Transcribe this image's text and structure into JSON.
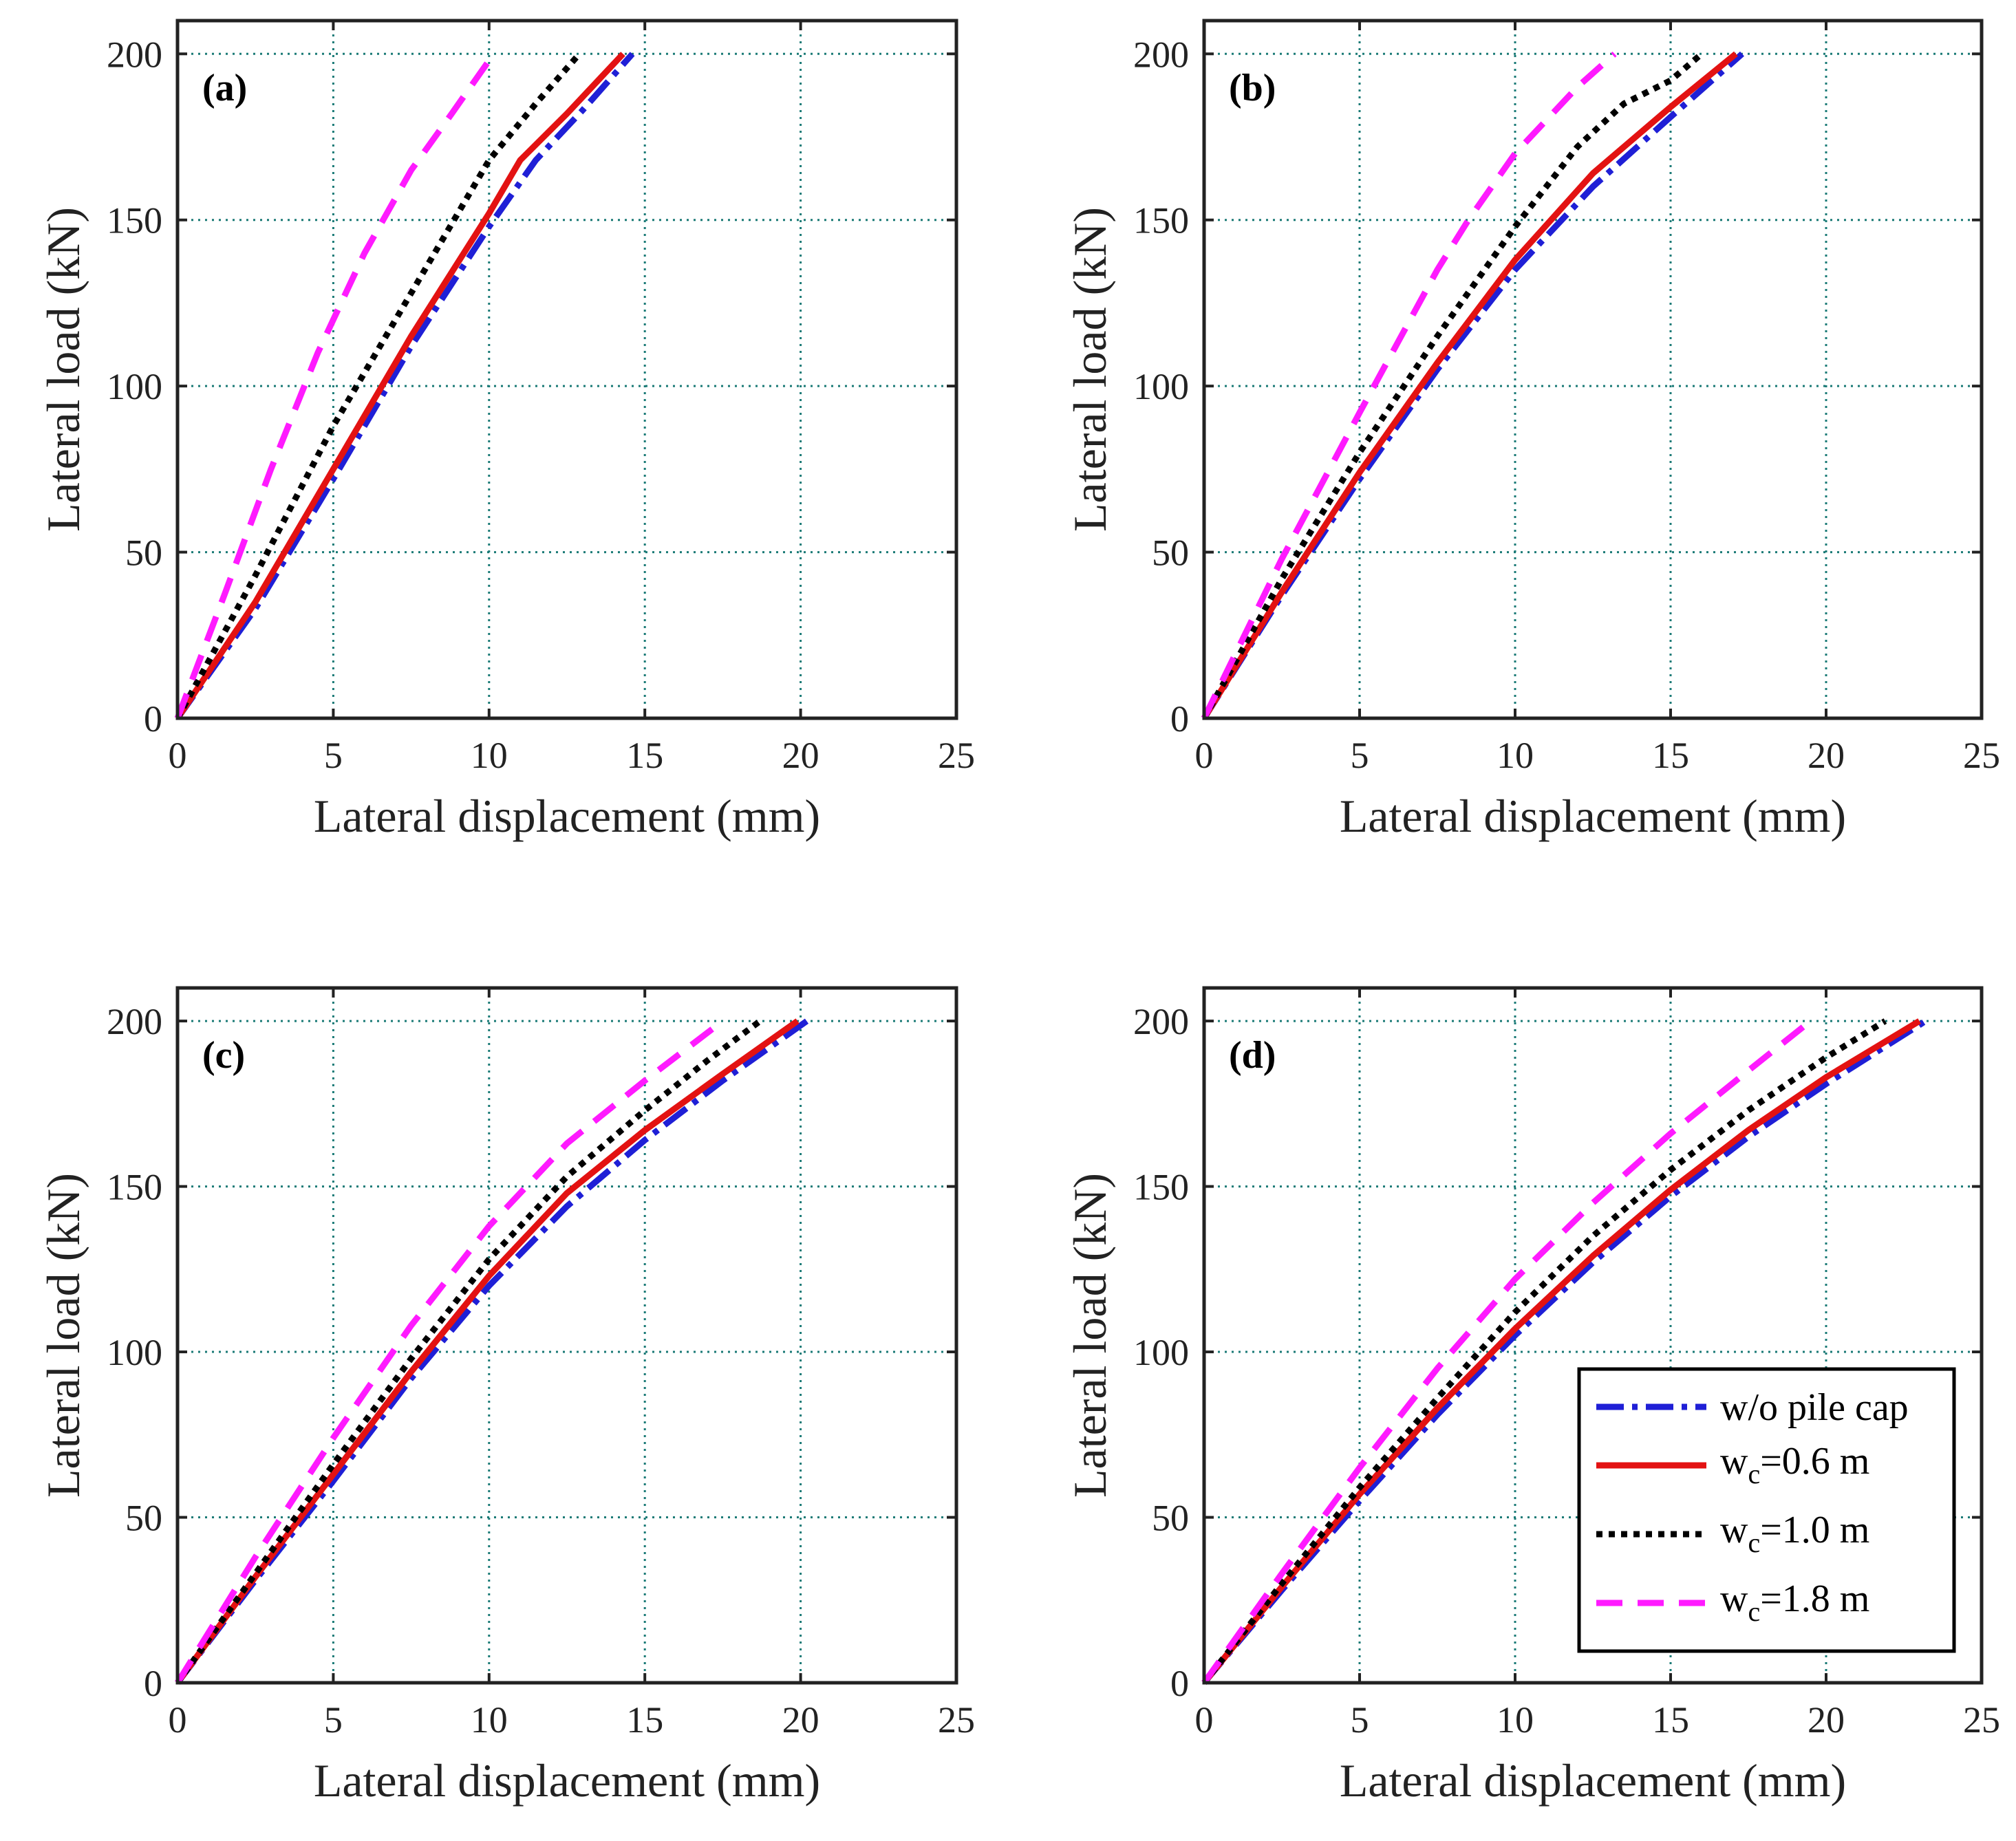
{
  "chart_data": [
    {
      "type": "line",
      "panel_label": "(a)",
      "xlabel": "Lateral displacement (mm)",
      "ylabel": "Lateral load (kN)",
      "xlim": [
        0,
        25
      ],
      "ylim": [
        0,
        210
      ],
      "xticks": [
        0,
        5,
        10,
        15,
        20,
        25
      ],
      "yticks": [
        0,
        50,
        100,
        150,
        200
      ],
      "grid": true,
      "series": [
        {
          "key": "wo",
          "x": [
            0,
            2.5,
            5,
            7.5,
            10,
            11.5,
            13,
            14.6
          ],
          "y": [
            0,
            33,
            72,
            112,
            148,
            168,
            183,
            200
          ]
        },
        {
          "key": "w06",
          "x": [
            0,
            2.5,
            5,
            7.5,
            10,
            11,
            12.5,
            14.3
          ],
          "y": [
            0,
            35,
            75,
            115,
            152,
            168,
            182,
            200
          ]
        },
        {
          "key": "w10",
          "x": [
            0,
            2.5,
            5,
            7.5,
            10,
            11.5,
            12.9
          ],
          "y": [
            0,
            43,
            88,
            128,
            168,
            185,
            200
          ]
        },
        {
          "key": "w18",
          "x": [
            0,
            1.5,
            3,
            4.5,
            6,
            7.5,
            8.8,
            10
          ],
          "y": [
            0,
            37,
            75,
            110,
            140,
            165,
            182,
            198
          ]
        }
      ]
    },
    {
      "type": "line",
      "panel_label": "(b)",
      "xlabel": "Lateral displacement (mm)",
      "ylabel": "Lateral load (kN)",
      "xlim": [
        0,
        25
      ],
      "ylim": [
        0,
        210
      ],
      "xticks": [
        0,
        5,
        10,
        15,
        20,
        25
      ],
      "yticks": [
        0,
        50,
        100,
        150,
        200
      ],
      "grid": true,
      "series": [
        {
          "key": "wo",
          "x": [
            0,
            2.5,
            5,
            7.5,
            10,
            12.5,
            15,
            17.3
          ],
          "y": [
            0,
            37,
            72,
            105,
            135,
            160,
            181,
            200
          ]
        },
        {
          "key": "w06",
          "x": [
            0,
            2.5,
            5,
            7.5,
            10,
            12.5,
            15,
            17.1
          ],
          "y": [
            0,
            38,
            74,
            107,
            138,
            164,
            184,
            200
          ]
        },
        {
          "key": "w10",
          "x": [
            0,
            2.5,
            5,
            7.5,
            10,
            12,
            13.5,
            15,
            16
          ],
          "y": [
            0,
            42,
            80,
            115,
            148,
            172,
            185,
            192,
            200
          ]
        },
        {
          "key": "w18",
          "x": [
            0,
            2.5,
            5,
            7.5,
            8.5,
            10,
            12,
            13.2
          ],
          "y": [
            0,
            48,
            92,
            135,
            150,
            170,
            190,
            200
          ]
        }
      ]
    },
    {
      "type": "line",
      "panel_label": "(c)",
      "xlabel": "Lateral displacement (mm)",
      "ylabel": "Lateral load (kN)",
      "xlim": [
        0,
        25
      ],
      "ylim": [
        0,
        210
      ],
      "xticks": [
        0,
        5,
        10,
        15,
        20,
        25
      ],
      "yticks": [
        0,
        50,
        100,
        150,
        200
      ],
      "grid": true,
      "series": [
        {
          "key": "wo",
          "x": [
            0,
            2.5,
            5,
            7.5,
            10,
            12.5,
            15,
            17.5,
            20.2
          ],
          "y": [
            0,
            31,
            61,
            92,
            120,
            144,
            164,
            182,
            200
          ]
        },
        {
          "key": "w06",
          "x": [
            0,
            2.5,
            5,
            7.5,
            10,
            12.5,
            15,
            17.5,
            19.9
          ],
          "y": [
            0,
            32,
            63,
            94,
            123,
            148,
            167,
            184,
            200
          ]
        },
        {
          "key": "w10",
          "x": [
            0,
            2.5,
            5,
            7.5,
            10,
            12.5,
            15,
            17,
            18.7
          ],
          "y": [
            0,
            33,
            66,
            98,
            128,
            153,
            173,
            188,
            200
          ]
        },
        {
          "key": "w18",
          "x": [
            0,
            2.5,
            5,
            7.5,
            10,
            12.5,
            15,
            17.5
          ],
          "y": [
            0,
            38,
            74,
            108,
            138,
            163,
            182,
            200
          ]
        }
      ]
    },
    {
      "type": "line",
      "panel_label": "(d)",
      "xlabel": "Lateral displacement (mm)",
      "ylabel": "Lateral load (kN)",
      "xlim": [
        0,
        25
      ],
      "ylim": [
        0,
        210
      ],
      "xticks": [
        0,
        5,
        10,
        15,
        20,
        25
      ],
      "yticks": [
        0,
        50,
        100,
        150,
        200
      ],
      "grid": true,
      "series": [
        {
          "key": "wo",
          "x": [
            0,
            2.5,
            5,
            7.5,
            10,
            12.5,
            15,
            17.5,
            20,
            23.2
          ],
          "y": [
            0,
            28,
            55,
            81,
            105,
            127,
            147,
            165,
            181,
            200
          ]
        },
        {
          "key": "w06",
          "x": [
            0,
            2.5,
            5,
            7.5,
            10,
            12.5,
            15,
            17.5,
            20,
            23
          ],
          "y": [
            0,
            29,
            57,
            83,
            107,
            129,
            149,
            167,
            183,
            200
          ]
        },
        {
          "key": "w10",
          "x": [
            0,
            2.5,
            5,
            7.5,
            10,
            12.5,
            15,
            17.5,
            20,
            21.9
          ],
          "y": [
            0,
            30,
            59,
            86,
            112,
            135,
            155,
            173,
            189,
            200
          ]
        },
        {
          "key": "w18",
          "x": [
            0,
            2.5,
            5,
            7.5,
            10,
            12.5,
            15,
            17.5,
            19.5
          ],
          "y": [
            0,
            33,
            65,
            95,
            122,
            145,
            166,
            185,
            200
          ]
        }
      ]
    }
  ],
  "legend": {
    "placement": "bottom-right of panel (d)",
    "entries": [
      {
        "key": "wo",
        "label": "w/o pile cap",
        "color": "#1f1fd6",
        "style": "dash-dot"
      },
      {
        "key": "w06",
        "label_main": "w",
        "label_sub": "c",
        "label_rest": "=0.6 m",
        "color": "#e31212",
        "style": "solid"
      },
      {
        "key": "w10",
        "label_main": "w",
        "label_sub": "c",
        "label_rest": "=1.0 m",
        "color": "#000000",
        "style": "dotted"
      },
      {
        "key": "w18",
        "label_main": "w",
        "label_sub": "c",
        "label_rest": "=1.8 m",
        "color": "#ff1aff",
        "style": "dashed"
      }
    ]
  }
}
